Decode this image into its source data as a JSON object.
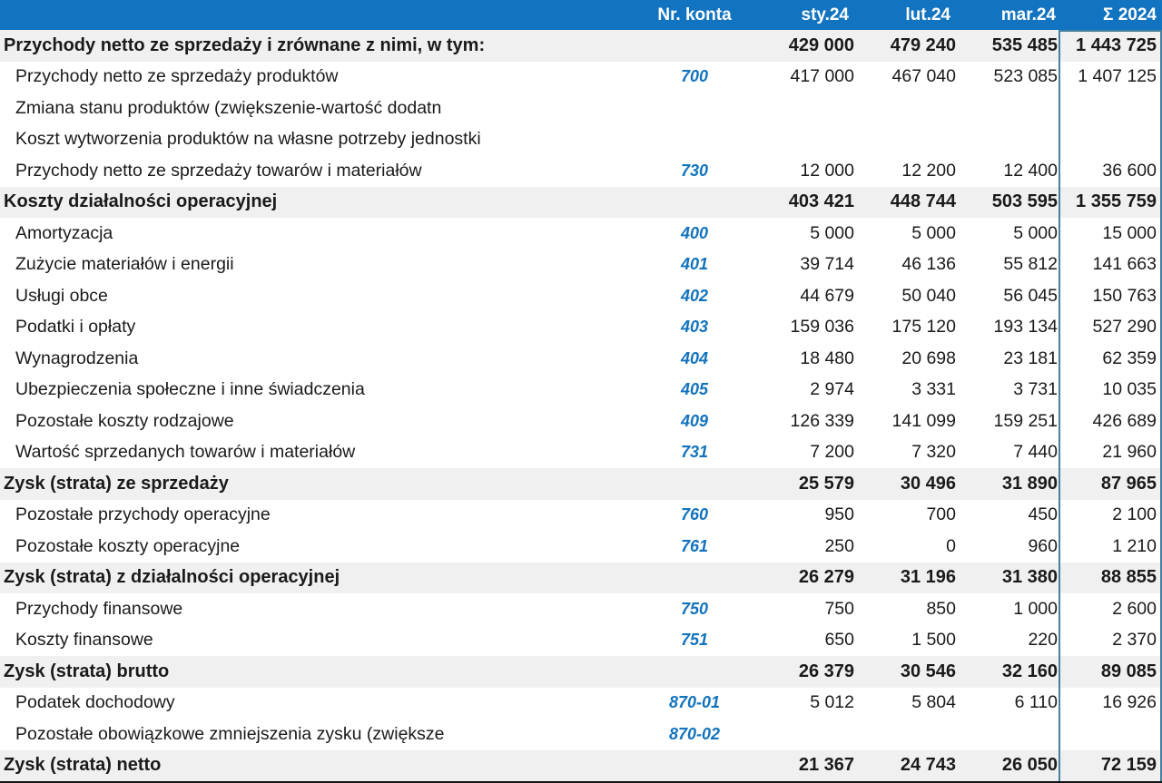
{
  "header": {
    "konto": "Nr. konta",
    "months": [
      "sty.24",
      "lut.24",
      "mar.24"
    ],
    "total": "Σ 2024"
  },
  "colors": {
    "header_bg": "#1274c0",
    "header_text": "#ffffff",
    "account_number_blue": "#1273bd",
    "summary_row_bg": "#f0f0f0",
    "sum_column_border": "#477f9e",
    "comment_flag_green": "#1f9254",
    "bottom_border": "#131313"
  },
  "rows": [
    {
      "name": "Przychody netto ze sprzedaży i zrównane z nimi, w tym:",
      "konto": "",
      "bold": true,
      "flag": false,
      "values": [
        "429 000",
        "479 240",
        "535 485",
        "1 443 725"
      ]
    },
    {
      "name": "Przychody netto ze sprzedaży produktów",
      "konto": "700",
      "bold": false,
      "flag": false,
      "values": [
        "417 000",
        "467 040",
        "523 085",
        "1 407 125"
      ]
    },
    {
      "name": "Zmiana stanu produktów (zwiększenie-wartość dodatn",
      "konto": "",
      "bold": false,
      "flag": false,
      "values": [
        "",
        "",
        "",
        ""
      ]
    },
    {
      "name": "Koszt wytworzenia produktów na własne potrzeby jednostki",
      "konto": "",
      "bold": false,
      "flag": false,
      "values": [
        "",
        "",
        "",
        ""
      ]
    },
    {
      "name": "Przychody netto ze sprzedaży towarów i materiałów",
      "konto": "730",
      "bold": false,
      "flag": false,
      "values": [
        "12 000",
        "12 200",
        "12 400",
        "36 600"
      ]
    },
    {
      "name": "Koszty działalności operacyjnej",
      "konto": "",
      "bold": true,
      "flag": true,
      "values": [
        "403 421",
        "448 744",
        "503 595",
        "1 355 759"
      ]
    },
    {
      "name": "Amortyzacja",
      "konto": "400",
      "bold": false,
      "flag": false,
      "values": [
        "5 000",
        "5 000",
        "5 000",
        "15 000"
      ]
    },
    {
      "name": "Zużycie materiałów i energii",
      "konto": "401",
      "bold": false,
      "flag": false,
      "values": [
        "39 714",
        "46 136",
        "55 812",
        "141 663"
      ]
    },
    {
      "name": "Usługi obce",
      "konto": "402",
      "bold": false,
      "flag": false,
      "values": [
        "44 679",
        "50 040",
        "56 045",
        "150 763"
      ]
    },
    {
      "name": "Podatki i opłaty",
      "konto": "403",
      "bold": false,
      "flag": false,
      "values": [
        "159 036",
        "175 120",
        "193 134",
        "527 290"
      ]
    },
    {
      "name": "Wynagrodzenia",
      "konto": "404",
      "bold": false,
      "flag": false,
      "values": [
        "18 480",
        "20 698",
        "23 181",
        "62 359"
      ]
    },
    {
      "name": "Ubezpieczenia społeczne i inne świadczenia",
      "konto": "405",
      "bold": false,
      "flag": false,
      "values": [
        "2 974",
        "3 331",
        "3 731",
        "10 035"
      ]
    },
    {
      "name": "Pozostałe koszty rodzajowe",
      "konto": "409",
      "bold": false,
      "flag": false,
      "values": [
        "126 339",
        "141 099",
        "159 251",
        "426 689"
      ]
    },
    {
      "name": "Wartość sprzedanych towarów i materiałów",
      "konto": "731",
      "bold": false,
      "flag": false,
      "values": [
        "7 200",
        "7 320",
        "7 440",
        "21 960"
      ]
    },
    {
      "name": "Zysk (strata) ze sprzedaży",
      "konto": "",
      "bold": true,
      "flag": true,
      "values": [
        "25 579",
        "30 496",
        "31 890",
        "87 965"
      ]
    },
    {
      "name": "Pozostałe przychody operacyjne",
      "konto": "760",
      "bold": false,
      "flag": false,
      "values": [
        "950",
        "700",
        "450",
        "2 100"
      ]
    },
    {
      "name": "Pozostałe koszty operacyjne",
      "konto": "761",
      "bold": false,
      "flag": false,
      "values": [
        "250",
        "0",
        "960",
        "1 210"
      ]
    },
    {
      "name": "Zysk (strata) z działalności operacyjnej",
      "konto": "",
      "bold": true,
      "flag": true,
      "values": [
        "26 279",
        "31 196",
        "31 380",
        "88 855"
      ]
    },
    {
      "name": "Przychody finansowe",
      "konto": "750",
      "bold": false,
      "flag": false,
      "values": [
        "750",
        "850",
        "1 000",
        "2 600"
      ]
    },
    {
      "name": "Koszty finansowe",
      "konto": "751",
      "bold": false,
      "flag": false,
      "values": [
        "650",
        "1 500",
        "220",
        "2 370"
      ]
    },
    {
      "name": "Zysk (strata) brutto",
      "konto": "",
      "bold": true,
      "flag": true,
      "values": [
        "26 379",
        "30 546",
        "32 160",
        "89 085"
      ]
    },
    {
      "name": "Podatek dochodowy",
      "konto": "870-01",
      "bold": false,
      "flag": false,
      "values": [
        "5 012",
        "5 804",
        "6 110",
        "16 926"
      ]
    },
    {
      "name": "Pozostałe obowiązkowe zmniejszenia zysku (zwiększe",
      "konto": "870-02",
      "bold": false,
      "flag": false,
      "values": [
        "",
        "",
        "",
        ""
      ]
    },
    {
      "name": "Zysk (strata) netto",
      "konto": "",
      "bold": true,
      "flag": false,
      "values": [
        "21 367",
        "24 743",
        "26 050",
        "72 159"
      ]
    }
  ]
}
